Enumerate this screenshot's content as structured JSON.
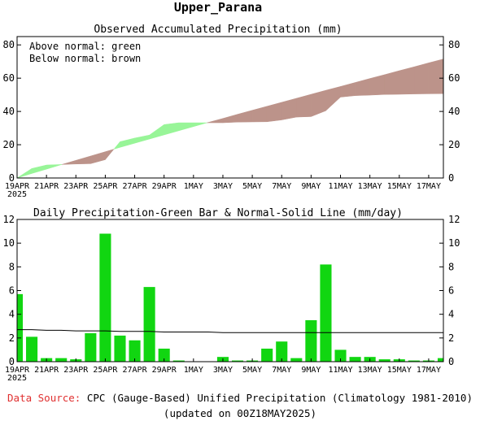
{
  "region_title": "Upper_Parana",
  "source_label": "Data Source:",
  "source_text": "CPC (Gauge-Based) Unified Precipitation (Climatology 1981-2010)",
  "updated_text": "(updated on 00Z18MAY2025)",
  "colors": {
    "above_normal": "#98f598",
    "below_normal": "#bc938a",
    "daily_bar": "#11d611",
    "normal_line": "#000000",
    "source_label": "#e03030"
  },
  "chart_data": [
    {
      "type": "area",
      "title": "Observed Accumulated Precipitation (mm)",
      "annotations": [
        "Above normal: green",
        "Below normal: brown"
      ],
      "x_tick_labels": [
        "19APR",
        "21APR",
        "23APR",
        "25APR",
        "27APR",
        "29APR",
        "1MAY",
        "3MAY",
        "5MAY",
        "7MAY",
        "9MAY",
        "11MAY",
        "13MAY",
        "15MAY",
        "17MAY"
      ],
      "x_year_label": "2025",
      "dates": [
        "19APR",
        "20APR",
        "21APR",
        "22APR",
        "23APR",
        "24APR",
        "25APR",
        "26APR",
        "27APR",
        "28APR",
        "29APR",
        "30APR",
        "1MAY",
        "2MAY",
        "3MAY",
        "4MAY",
        "5MAY",
        "6MAY",
        "7MAY",
        "8MAY",
        "9MAY",
        "10MAY",
        "11MAY",
        "12MAY",
        "13MAY",
        "14MAY",
        "15MAY",
        "16MAY",
        "17MAY",
        "18MAY"
      ],
      "ylim": [
        0,
        85
      ],
      "y_ticks": [
        0,
        20,
        40,
        60,
        80
      ],
      "series": [
        {
          "name": "Observed",
          "values": [
            0.0,
            5.7,
            7.8,
            8.1,
            8.4,
            8.6,
            11.0,
            21.8,
            24.0,
            25.8,
            32.1,
            33.2,
            33.2,
            33.2,
            33.2,
            33.6,
            33.7,
            33.8,
            34.9,
            36.6,
            36.9,
            40.4,
            48.6,
            49.5,
            49.8,
            50.2,
            50.3,
            50.5,
            50.6,
            50.7
          ]
        },
        {
          "name": "Normal",
          "values": [
            0.0,
            2.7,
            5.3,
            8.0,
            10.6,
            13.2,
            15.8,
            18.4,
            20.9,
            23.4,
            25.9,
            28.4,
            30.9,
            33.4,
            35.8,
            38.3,
            40.7,
            43.1,
            45.5,
            47.9,
            50.3,
            52.7,
            55.0,
            57.4,
            59.8,
            62.1,
            64.5,
            66.8,
            69.2,
            71.5
          ]
        }
      ]
    },
    {
      "type": "bar",
      "title": "Daily Precipitation-Green Bar & Normal-Solid Line (mm/day)",
      "x_tick_labels": [
        "19APR",
        "21APR",
        "23APR",
        "25APR",
        "27APR",
        "29APR",
        "1MAY",
        "3MAY",
        "5MAY",
        "7MAY",
        "9MAY",
        "11MAY",
        "13MAY",
        "15MAY",
        "17MAY"
      ],
      "x_year_label": "2025",
      "categories": [
        "19APR",
        "20APR",
        "21APR",
        "22APR",
        "23APR",
        "24APR",
        "25APR",
        "26APR",
        "27APR",
        "28APR",
        "29APR",
        "30APR",
        "1MAY",
        "2MAY",
        "3MAY",
        "4MAY",
        "5MAY",
        "6MAY",
        "7MAY",
        "8MAY",
        "9MAY",
        "10MAY",
        "11MAY",
        "12MAY",
        "13MAY",
        "14MAY",
        "15MAY",
        "16MAY",
        "17MAY",
        "18MAY"
      ],
      "ylim": [
        0,
        12
      ],
      "y_ticks": [
        0,
        2,
        4,
        6,
        8,
        10,
        12
      ],
      "series": [
        {
          "name": "Daily",
          "values": [
            5.7,
            2.1,
            0.3,
            0.3,
            0.2,
            2.4,
            10.8,
            2.2,
            1.8,
            6.3,
            1.1,
            0.1,
            0.0,
            0.0,
            0.4,
            0.1,
            0.1,
            1.1,
            1.7,
            0.3,
            3.5,
            8.2,
            1.0,
            0.4,
            0.4,
            0.2,
            0.2,
            0.1,
            0.1,
            0.3
          ]
        },
        {
          "name": "Normal",
          "values": [
            2.7,
            2.7,
            2.65,
            2.65,
            2.6,
            2.6,
            2.6,
            2.55,
            2.55,
            2.55,
            2.5,
            2.5,
            2.5,
            2.5,
            2.45,
            2.45,
            2.45,
            2.45,
            2.45,
            2.45,
            2.45,
            2.45,
            2.45,
            2.45,
            2.45,
            2.45,
            2.45,
            2.45,
            2.45,
            2.45
          ]
        }
      ]
    }
  ]
}
